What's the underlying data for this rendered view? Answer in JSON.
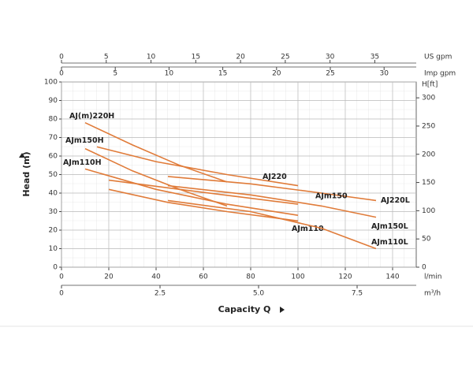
{
  "chart_data": {
    "type": "line",
    "x_unit": "l/min",
    "xlim": [
      0,
      150
    ],
    "xticks": [
      0,
      20,
      40,
      60,
      80,
      100,
      120,
      140
    ],
    "y_label": "Head (m)",
    "ylim": [
      0,
      100
    ],
    "yticks": [
      0,
      10,
      20,
      30,
      40,
      50,
      60,
      70,
      80,
      90,
      100
    ],
    "x_label": "Capacity Q",
    "usgpm_unit": "US gpm",
    "usgpm_lim": [
      0,
      39.63
    ],
    "usgpm_ticks": [
      0,
      5,
      10,
      15,
      20,
      25,
      30,
      35
    ],
    "impgpm_unit": "Imp gpm",
    "impgpm_lim": [
      0,
      32.99
    ],
    "impgpm_ticks": [
      0,
      5,
      10,
      15,
      20,
      25,
      30
    ],
    "m3h_unit": "m³/h",
    "m3h_lim": [
      0,
      9
    ],
    "m3h_ticks": [
      0,
      2.5,
      {
        "value": 5,
        "label": "5.0"
      },
      7.5
    ],
    "ft_unit": "H[ft]",
    "ft_lim": [
      0,
      328.1
    ],
    "ft_ticks": [
      0,
      50,
      100,
      150,
      200,
      250,
      300
    ],
    "grid": true,
    "series": [
      {
        "name": "AJ(m)220H",
        "color": "#e07b39",
        "x": [
          10,
          30,
          50,
          70
        ],
        "values": [
          78,
          66,
          55,
          46
        ]
      },
      {
        "name": "AJ220",
        "color": "#e07b39",
        "x": [
          15,
          40,
          70,
          100
        ],
        "values": [
          65,
          57,
          50,
          44
        ]
      },
      {
        "name": "AJ220L",
        "color": "#e07b39",
        "x": [
          45,
          80,
          110,
          133
        ],
        "values": [
          49,
          45,
          40,
          36
        ]
      },
      {
        "name": "AJm150H",
        "color": "#e07b39",
        "x": [
          10,
          30,
          50,
          70
        ],
        "values": [
          64,
          52,
          42,
          33
        ]
      },
      {
        "name": "AJm150",
        "color": "#e07b39",
        "x": [
          20,
          50,
          75,
          100
        ],
        "values": [
          47,
          42,
          38,
          34
        ]
      },
      {
        "name": "AJm150L",
        "color": "#e07b39",
        "x": [
          45,
          80,
          110,
          133
        ],
        "values": [
          44,
          39,
          33,
          27
        ]
      },
      {
        "name": "AJm110H",
        "color": "#e07b39",
        "x": [
          10,
          40,
          70,
          100
        ],
        "values": [
          53,
          42,
          34,
          28
        ]
      },
      {
        "name": "AJm110",
        "color": "#e07b39",
        "x": [
          20,
          45,
          70,
          100
        ],
        "values": [
          42,
          35,
          30,
          25
        ]
      },
      {
        "name": "AJm110L",
        "color": "#e07b39",
        "x": [
          45,
          80,
          110,
          133
        ],
        "values": [
          36,
          30,
          21,
          10
        ]
      }
    ]
  }
}
